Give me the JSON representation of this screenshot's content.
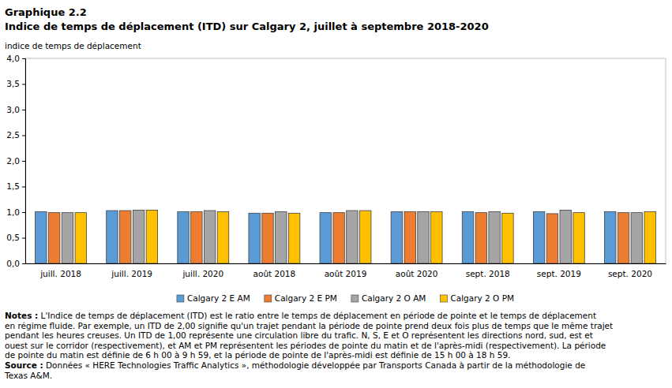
{
  "chart_data": {
    "type": "bar",
    "title": "Graphique  2.2",
    "subtitle": "Indice de temps de déplacement (ITD) sur Calgary 2, juillet à septembre 2018-2020",
    "y_label": "indice de temps de déplacement",
    "categories": [
      "juill. 2018",
      "juill. 2019",
      "juill. 2020",
      "août 2018",
      "août 2019",
      "août 2020",
      "sept. 2018",
      "sept. 2019",
      "sept. 2020"
    ],
    "series": [
      {
        "name": "Calgary 2 E AM",
        "color": "#5b9bd5",
        "values": [
          1.01,
          1.03,
          1.01,
          0.98,
          0.99,
          1.01,
          1.01,
          1.01,
          1.01
        ]
      },
      {
        "name": "Calgary 2 E PM",
        "color": "#ed7d31",
        "values": [
          0.99,
          1.03,
          1.01,
          0.98,
          0.99,
          1.01,
          0.99,
          0.97,
          0.99
        ]
      },
      {
        "name": "Calgary 2 O AM",
        "color": "#a5a5a5",
        "values": [
          0.99,
          1.04,
          1.03,
          1.01,
          1.03,
          1.01,
          1.01,
          1.04,
          0.99
        ]
      },
      {
        "name": "Calgary 2 O PM",
        "color": "#ffc000",
        "values": [
          0.99,
          1.04,
          1.01,
          0.98,
          1.03,
          1.01,
          0.98,
          0.99,
          1.01
        ]
      }
    ],
    "ylim": [
      0,
      4
    ],
    "yticks": [
      {
        "value": 0,
        "label": "0,0"
      },
      {
        "value": 0.5,
        "label": "0,5"
      },
      {
        "value": 1,
        "label": "1,0"
      },
      {
        "value": 1.5,
        "label": "1,5"
      },
      {
        "value": 2,
        "label": "2,0"
      },
      {
        "value": 2.5,
        "label": "2,5"
      },
      {
        "value": 3,
        "label": "3,0"
      },
      {
        "value": 3.5,
        "label": "3,5"
      },
      {
        "value": 4,
        "label": "4,0"
      }
    ],
    "grid": false,
    "legend": "bottom",
    "notes": {
      "label": "Notes :",
      "lines": [
        "L'Indice de temps de déplacement (ITD) est le ratio  entre le temps de déplacement en période de pointe et le temps de déplacement",
        "en régime fluide. Par exemple, un ITD de 2,00 signifie qu'un trajet pendant la période de pointe prend deux fois plus de temps que le même trajet",
        "pendant les heures creuses. Un ITD de 1,00 représente une circulation libre du trafic. N, S, E et O représentent les directions nord, sud, est et",
        "ouest sur le corridor (respectivement), et AM et PM représentent les périodes de pointe du matin et de l'après-midi (respectivement). La période",
        "de pointe du matin est définie de 6 h 00 à 9 h 59, et la période de pointe de l'après-midi est définie de 15 h 00 à 18 h 59."
      ]
    },
    "source": {
      "label": "Source :",
      "lines": [
        "Données « HERE Technologies Traffic Analytics », méthodologie développée par Transports Canada à partir de la méthodologie de",
        "Texas A&M."
      ]
    }
  }
}
